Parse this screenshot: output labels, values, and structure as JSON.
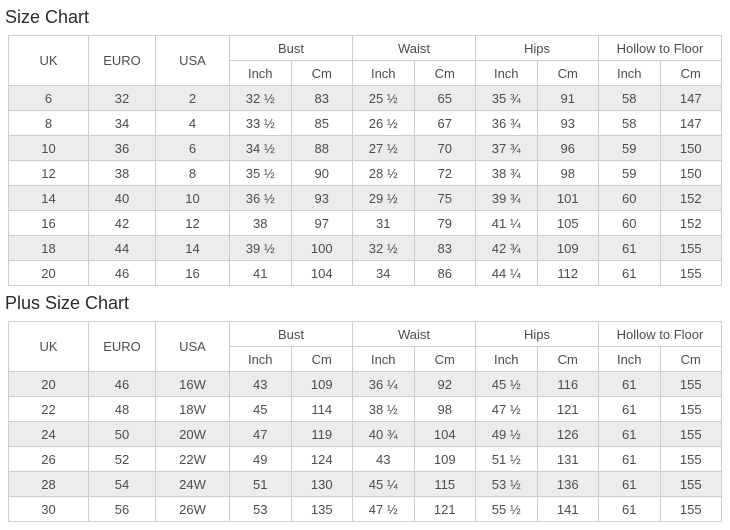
{
  "page": {
    "colors": {
      "background": "#ffffff",
      "border": "#cccccc",
      "stripe": "#ececec",
      "text": "#4d4d4d",
      "title": "#2b2b2b"
    }
  },
  "chart_data": [
    {
      "type": "table",
      "title": "Size Chart",
      "header": {
        "main": [
          "UK",
          "EURO",
          "USA"
        ],
        "groups": [
          {
            "label": "Bust"
          },
          {
            "label": "Waist"
          },
          {
            "label": "Hips"
          },
          {
            "label": "Hollow to Floor"
          }
        ],
        "units": [
          "Inch",
          "Cm",
          "Inch",
          "Cm",
          "Inch",
          "Cm",
          "Inch",
          "Cm"
        ]
      },
      "rows": [
        [
          "6",
          "32",
          "2",
          "32 ½",
          "83",
          "25 ½",
          "65",
          "35 ¾",
          "91",
          "58",
          "147"
        ],
        [
          "8",
          "34",
          "4",
          "33 ½",
          "85",
          "26 ½",
          "67",
          "36 ¾",
          "93",
          "58",
          "147"
        ],
        [
          "10",
          "36",
          "6",
          "34 ½",
          "88",
          "27 ½",
          "70",
          "37 ¾",
          "96",
          "59",
          "150"
        ],
        [
          "12",
          "38",
          "8",
          "35 ½",
          "90",
          "28 ½",
          "72",
          "38 ¾",
          "98",
          "59",
          "150"
        ],
        [
          "14",
          "40",
          "10",
          "36 ½",
          "93",
          "29 ½",
          "75",
          "39 ¾",
          "101",
          "60",
          "152"
        ],
        [
          "16",
          "42",
          "12",
          "38",
          "97",
          "31",
          "79",
          "41 ¼",
          "105",
          "60",
          "152"
        ],
        [
          "18",
          "44",
          "14",
          "39 ½",
          "100",
          "32 ½",
          "83",
          "42 ¾",
          "109",
          "61",
          "155"
        ],
        [
          "20",
          "46",
          "16",
          "41",
          "104",
          "34",
          "86",
          "44 ¼",
          "112",
          "61",
          "155"
        ]
      ]
    },
    {
      "type": "table",
      "title": "Plus Size Chart",
      "header": {
        "main": [
          "UK",
          "EURO",
          "USA"
        ],
        "groups": [
          {
            "label": "Bust"
          },
          {
            "label": "Waist"
          },
          {
            "label": "Hips"
          },
          {
            "label": "Hollow to Floor"
          }
        ],
        "units": [
          "Inch",
          "Cm",
          "Inch",
          "Cm",
          "Inch",
          "Cm",
          "Inch",
          "Cm"
        ]
      },
      "rows": [
        [
          "20",
          "46",
          "16W",
          "43",
          "109",
          "36 ¼",
          "92",
          "45 ½",
          "116",
          "61",
          "155"
        ],
        [
          "22",
          "48",
          "18W",
          "45",
          "114",
          "38 ½",
          "98",
          "47 ½",
          "121",
          "61",
          "155"
        ],
        [
          "24",
          "50",
          "20W",
          "47",
          "119",
          "40 ¾",
          "104",
          "49 ½",
          "126",
          "61",
          "155"
        ],
        [
          "26",
          "52",
          "22W",
          "49",
          "124",
          "43",
          "109",
          "51 ½",
          "131",
          "61",
          "155"
        ],
        [
          "28",
          "54",
          "24W",
          "51",
          "130",
          "45 ¼",
          "115",
          "53 ½",
          "136",
          "61",
          "155"
        ],
        [
          "30",
          "56",
          "26W",
          "53",
          "135",
          "47 ½",
          "121",
          "55 ½",
          "141",
          "61",
          "155"
        ]
      ]
    }
  ]
}
